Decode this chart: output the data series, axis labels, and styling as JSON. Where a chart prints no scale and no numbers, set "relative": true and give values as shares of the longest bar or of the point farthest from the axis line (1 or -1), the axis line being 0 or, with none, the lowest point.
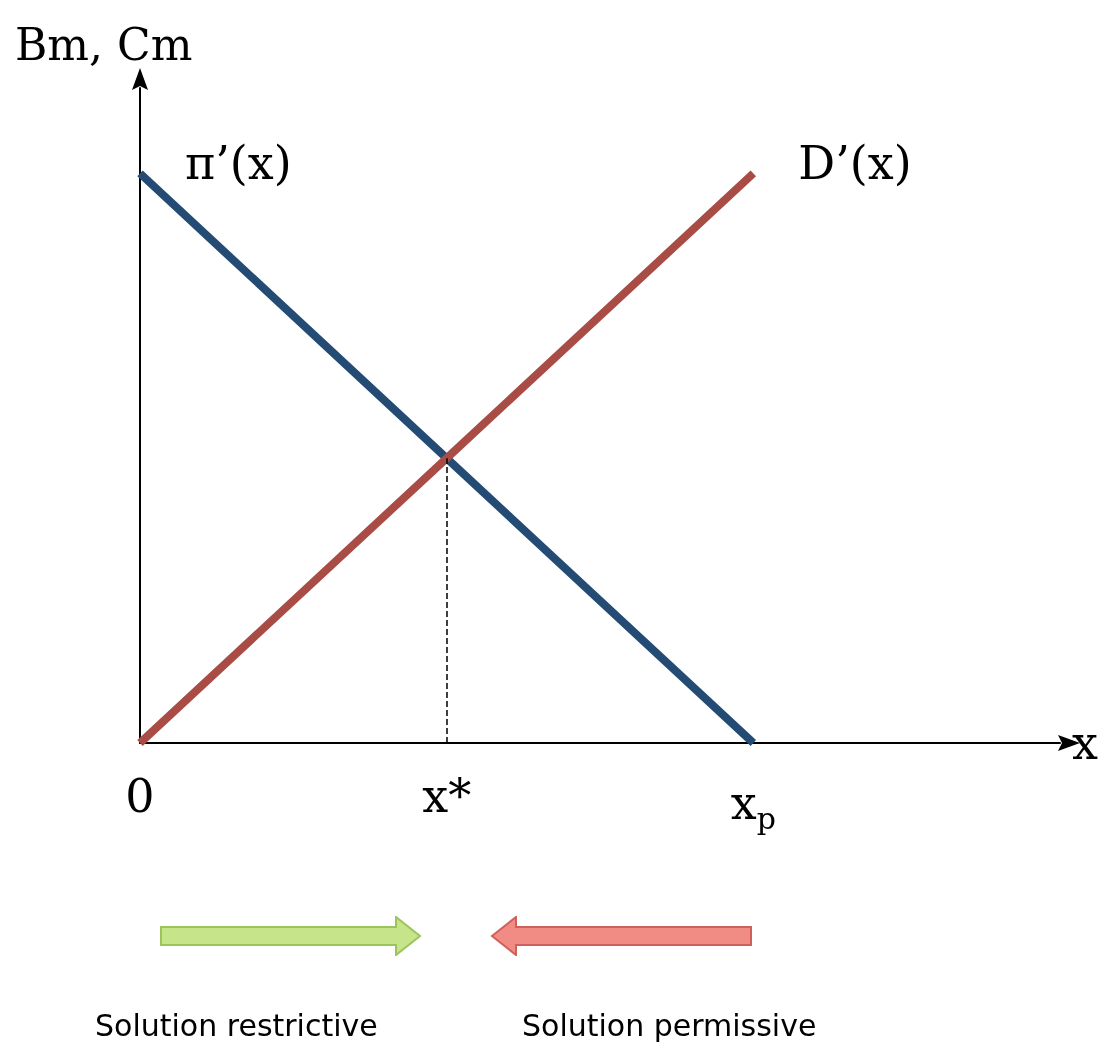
{
  "chart_data": {
    "type": "line",
    "relative": true,
    "ylabel": "Bm, Cm",
    "xlabel": "x",
    "categories": [
      "0",
      "x*",
      "x$_{p}$",
      null
    ],
    "series": [
      {
        "name": "π’(x)",
        "color": "#234b74",
        "values": [
          1,
          0.5,
          0,
          null
        ]
      },
      {
        "name": "D’(x)",
        "color": "#a94c45",
        "values": [
          0,
          0.5,
          1,
          null
        ]
      }
    ],
    "ref_lines": [
      {
        "axis": "x",
        "value": "x*",
        "line_style": "dashed",
        "color": "#000000"
      }
    ],
    "annotations": [
      "Solution restrictive",
      "Solution permissive"
    ],
    "tick_labels": "x",
    "grid": false,
    "legend": false,
    "marker": "none",
    "line_style": "solid"
  }
}
